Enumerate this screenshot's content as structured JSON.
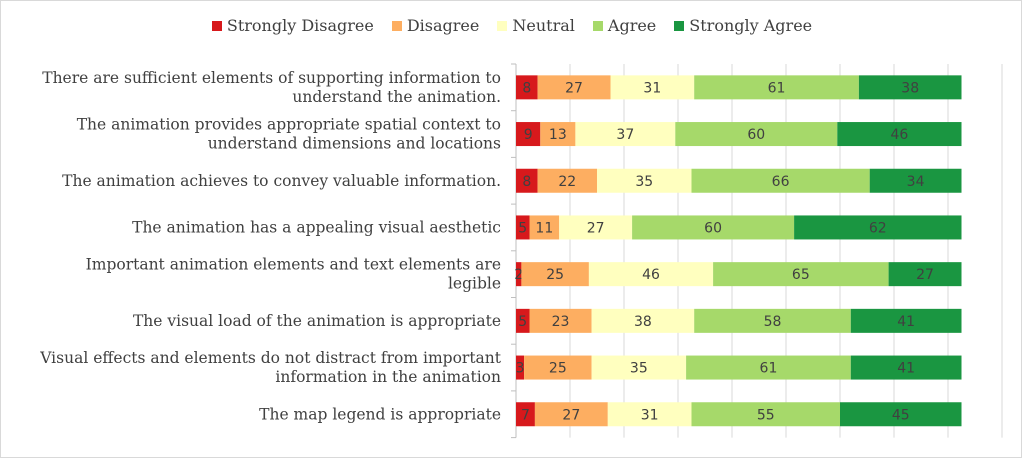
{
  "chart_data": {
    "type": "bar",
    "orientation": "horizontal",
    "stacked": true,
    "title": "",
    "xlabel": "",
    "ylabel": "",
    "xlim": [
      0,
      180
    ],
    "grid": true,
    "legend_position": "top",
    "categories": [
      [
        "There are sufficient elements of supporting information to",
        "understand the animation."
      ],
      [
        "The animation provides appropriate spatial context to",
        "understand dimensions and locations"
      ],
      [
        "The animation achieves to convey valuable information."
      ],
      [
        "The animation has a appealing visual aesthetic"
      ],
      [
        "Important animation elements and text elements are",
        "legible"
      ],
      [
        "The visual load of the animation is appropriate"
      ],
      [
        "Visual effects and elements do not distract from important",
        "information in the animation"
      ],
      [
        "The map legend is appropriate"
      ]
    ],
    "series": [
      {
        "name": "Strongly Disagree",
        "color": "#d7191c",
        "values": [
          8,
          9,
          8,
          5,
          2,
          5,
          3,
          7
        ]
      },
      {
        "name": "Disagree",
        "color": "#fdae61",
        "values": [
          27,
          13,
          22,
          11,
          25,
          23,
          25,
          27
        ]
      },
      {
        "name": "Neutral",
        "color": "#ffffbf",
        "values": [
          31,
          37,
          35,
          27,
          46,
          38,
          35,
          31
        ]
      },
      {
        "name": "Agree",
        "color": "#a6d96a",
        "values": [
          61,
          60,
          66,
          60,
          65,
          58,
          61,
          55
        ]
      },
      {
        "name": "Strongly Agree",
        "color": "#1a9641",
        "values": [
          38,
          46,
          34,
          62,
          27,
          41,
          41,
          45
        ]
      }
    ]
  }
}
